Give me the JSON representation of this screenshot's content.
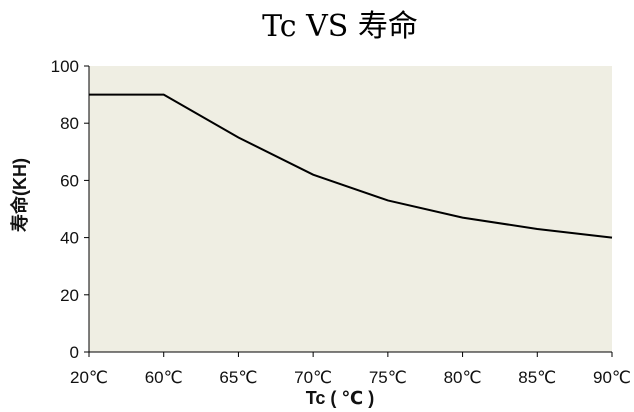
{
  "chart_data": {
    "type": "line",
    "title": "Tc VS 寿命",
    "xlabel": "Tc ( ℃ )",
    "ylabel": "寿命(KH)",
    "categories": [
      "20℃",
      "60℃",
      "65℃",
      "70℃",
      "75℃",
      "80℃",
      "85℃",
      "90℃"
    ],
    "series": [
      {
        "values": [
          90,
          90,
          75,
          62,
          53,
          47,
          43,
          40
        ]
      }
    ],
    "yticks": [
      "0",
      "20",
      "40",
      "60",
      "80",
      "100"
    ],
    "ylim": [
      0,
      100
    ],
    "grid": false,
    "legend": "none",
    "colors": {
      "plot_bg": "#efeee3",
      "line": "#000000"
    }
  }
}
